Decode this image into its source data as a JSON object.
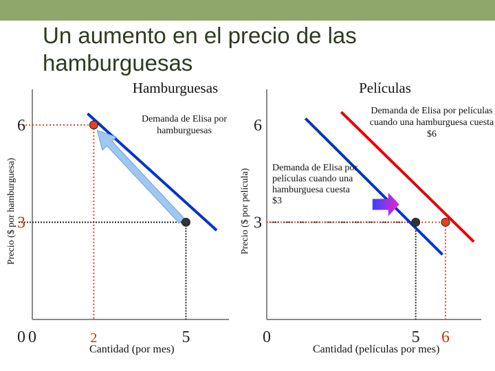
{
  "slide": {
    "title": "Un aumento en el precio de las hamburguesas",
    "topbar_color": "#8fa76a"
  },
  "chart_data": [
    {
      "type": "line",
      "title": "Hamburguesas",
      "xlabel": "Cantidad (por mes)",
      "ylabel": "Precio ($ por hamburguesa)",
      "xlim": [
        0,
        6.4
      ],
      "ylim": [
        0,
        7.1
      ],
      "x_ticks": [
        "0",
        "2",
        "5"
      ],
      "y_ticks": [
        "0",
        "3",
        "6"
      ],
      "series": [
        {
          "name": "Demanda de Elisa por hamburguesas",
          "color": "#0033cc",
          "points": [
            [
              1.8,
              6.35
            ],
            [
              6.0,
              2.75
            ]
          ]
        }
      ],
      "highlighted_points": [
        {
          "x": 2,
          "y": 6,
          "color": "#e8401c",
          "guide_style": "dotted-red"
        },
        {
          "x": 5,
          "y": 3,
          "color": "#333333",
          "guide_style": "dotted-black"
        }
      ],
      "annotation": "arrow along the demand curve from (5, 3) up to (2, 6)"
    },
    {
      "type": "line",
      "title": "Películas",
      "xlabel": "Cantidad (películas por mes)",
      "ylabel": "Precio ($ por película)",
      "xlim": [
        0,
        7.2
      ],
      "ylim": [
        0,
        7.1
      ],
      "x_ticks": [
        "0",
        "5",
        "6"
      ],
      "y_ticks": [
        "3",
        "6"
      ],
      "series": [
        {
          "name": "Demanda de Elisa por películas cuando una hamburguesa cuesta $3",
          "color": "#0033cc",
          "points": [
            [
              1.3,
              6.2
            ],
            [
              5.9,
              2.0
            ]
          ]
        },
        {
          "name": "Demanda de Elisa por películas cuando una hamburguesa cuesta $6",
          "color": "#e60000",
          "points": [
            [
              2.5,
              6.4
            ],
            [
              6.95,
              2.4
            ]
          ]
        }
      ],
      "highlighted_points": [
        {
          "x": 5,
          "y": 3,
          "color": "#333333",
          "guide_style": "dotted-black"
        },
        {
          "x": 6,
          "y": 3,
          "color": "#e8401c",
          "guide_style": "dotted-red"
        }
      ],
      "annotation": "arrow showing the demand curve shifting right"
    }
  ]
}
